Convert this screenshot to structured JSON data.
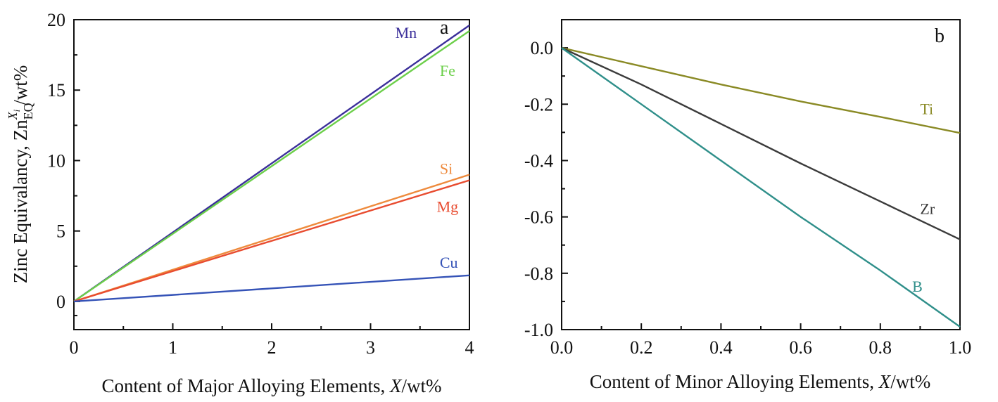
{
  "chart_data": [
    {
      "type": "line",
      "panel_label": "a",
      "xlabel_prefix": "Content of Major Alloying Elements, ",
      "xlabel_var": "X",
      "xlabel_suffix": "/wt%",
      "ylabel_prefix": "Zinc Equivalancy, Zn",
      "ylabel_sub": "EQ",
      "ylabel_sup": "X",
      "ylabel_sup_sub": "i",
      "ylabel_suffix": "/wt%",
      "xlim": [
        0,
        4
      ],
      "ylim": [
        -2,
        20
      ],
      "xticks": [
        "0",
        "1",
        "2",
        "3",
        "4"
      ],
      "yticks": [
        "0",
        "5",
        "10",
        "15",
        "20"
      ],
      "xticks_values": [
        0,
        1,
        2,
        3,
        4
      ],
      "yticks_values": [
        0,
        5,
        10,
        15,
        20
      ],
      "series": [
        {
          "name": "Mn",
          "color": "#3b2f9a",
          "x": [
            0,
            4
          ],
          "y": [
            0,
            19.6
          ],
          "label_at": [
            3.25,
            18.7
          ]
        },
        {
          "name": "Fe",
          "color": "#6ccf4a",
          "x": [
            0,
            4
          ],
          "y": [
            0,
            19.2
          ],
          "label_at": [
            3.7,
            16.0
          ]
        },
        {
          "name": "Si",
          "color": "#ee8a3c",
          "x": [
            0,
            4
          ],
          "y": [
            0,
            9.0
          ],
          "label_at": [
            3.7,
            9.05
          ]
        },
        {
          "name": "Mg",
          "color": "#e84c30",
          "x": [
            0,
            4
          ],
          "y": [
            0,
            8.6
          ],
          "label_at": [
            3.67,
            6.35
          ]
        },
        {
          "name": "Cu",
          "color": "#3553b7",
          "x": [
            0,
            4
          ],
          "y": [
            0,
            1.85
          ],
          "label_at": [
            3.7,
            2.4
          ]
        }
      ]
    },
    {
      "type": "line",
      "panel_label": "b",
      "xlabel_prefix": "Content of Minor Alloying Elements, ",
      "xlabel_var": "X",
      "xlabel_suffix": "/wt%",
      "xlim": [
        0,
        1
      ],
      "ylim": [
        -1.0,
        0.1
      ],
      "xticks": [
        "0.0",
        "0.2",
        "0.4",
        "0.6",
        "0.8",
        "1.0"
      ],
      "yticks": [
        "0.0",
        "-0.2",
        "-0.4",
        "-0.6",
        "-0.8",
        "-1.0"
      ],
      "xticks_values": [
        0,
        0.2,
        0.4,
        0.6,
        0.8,
        1.0
      ],
      "yticks_values": [
        0,
        -0.2,
        -0.4,
        -0.6,
        -0.8,
        -1.0
      ],
      "series": [
        {
          "name": "Ti",
          "color": "#8a8a25",
          "x": [
            0,
            0.2,
            0.4,
            0.6,
            0.8,
            1.0
          ],
          "y": [
            0,
            -0.065,
            -0.13,
            -0.19,
            -0.245,
            -0.302
          ],
          "label_at": [
            0.9,
            -0.235
          ]
        },
        {
          "name": "Zr",
          "color": "#3b3b3b",
          "x": [
            0,
            0.2,
            0.4,
            0.6,
            0.8,
            1.0
          ],
          "y": [
            0,
            -0.13,
            -0.27,
            -0.41,
            -0.545,
            -0.68
          ],
          "label_at": [
            0.9,
            -0.59
          ]
        },
        {
          "name": "B",
          "color": "#2f8f8a",
          "x": [
            0,
            0.2,
            0.4,
            0.6,
            0.8,
            1.0
          ],
          "y": [
            0,
            -0.2,
            -0.4,
            -0.6,
            -0.79,
            -0.99
          ],
          "label_at": [
            0.88,
            -0.865
          ]
        }
      ]
    }
  ]
}
